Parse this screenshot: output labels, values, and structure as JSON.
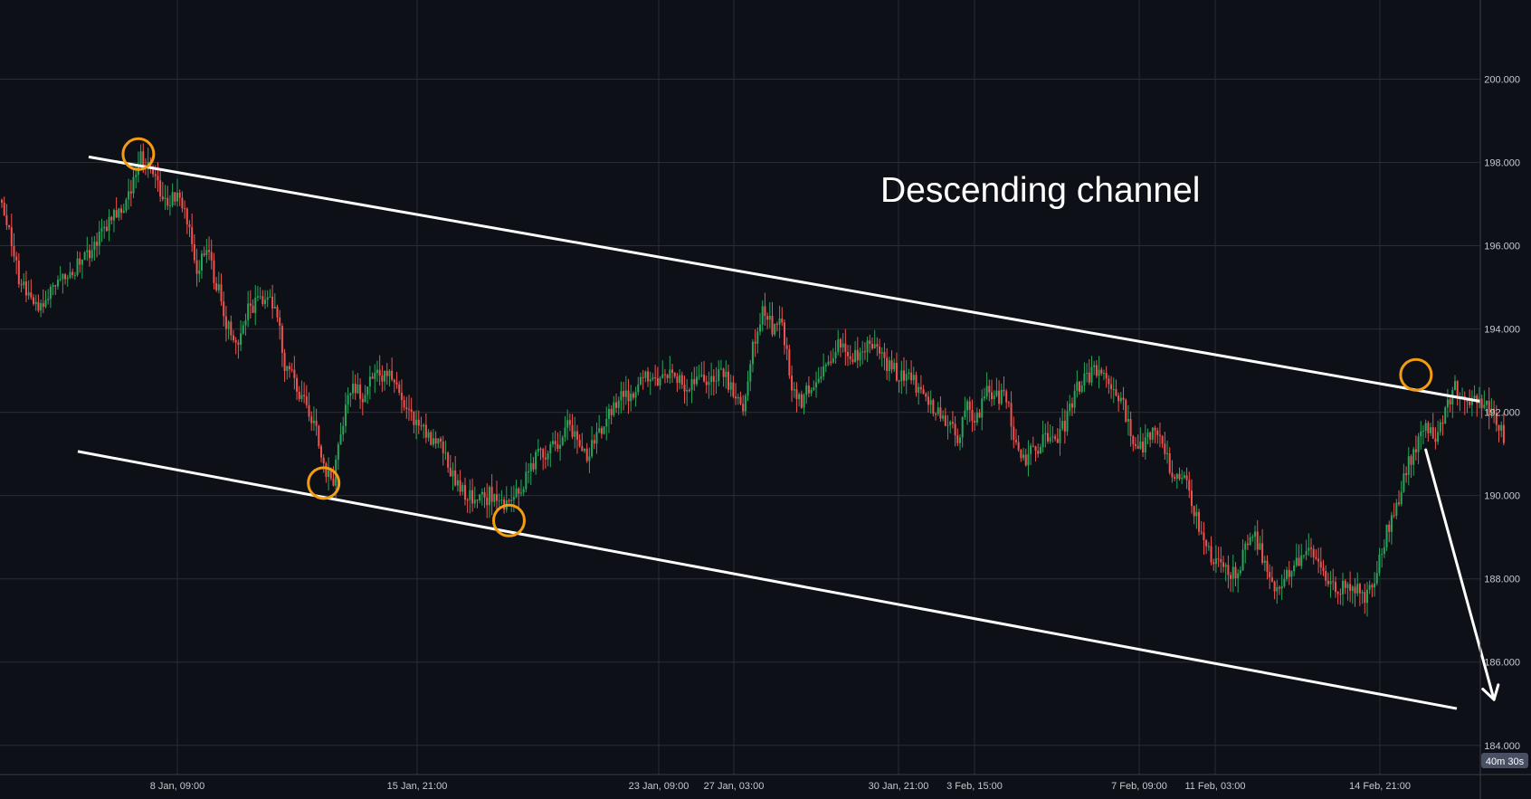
{
  "colors": {
    "background": "#0e1017",
    "grid": "#2a2d36",
    "up": "#26a65b",
    "down": "#ef5350",
    "trendline": "#ffffff",
    "pivot_circle": "#f39c12",
    "timer_bg": "#4a5063"
  },
  "timer": "40m 30s",
  "chart_data": {
    "type": "candlestick",
    "title": "",
    "annotation": "Descending channel",
    "ylim": [
      183.3,
      201.9
    ],
    "y_ticks": [
      184.0,
      186.0,
      188.0,
      190.0,
      192.0,
      194.0,
      196.0,
      198.0,
      200.0
    ],
    "y_tick_labels": [
      "184.000",
      "186.000",
      "188.000",
      "190.000",
      "192.000",
      "194.000",
      "196.000",
      "198.000",
      "200.000"
    ],
    "x_ticks": [
      "8 Jan, 09:00",
      "15 Jan, 21:00",
      "23 Jan, 09:00",
      "27 Jan, 03:00",
      "30 Jan, 21:00",
      "3 Feb, 15:00",
      "7 Feb, 09:00",
      "11 Feb, 03:00",
      "14 Feb, 21:00"
    ],
    "close_path": [
      [
        0,
        197.1
      ],
      [
        2,
        195.0
      ],
      [
        4,
        194.6
      ],
      [
        6,
        195.2
      ],
      [
        8,
        195.6
      ],
      [
        10,
        196.2
      ],
      [
        13,
        197.2
      ],
      [
        14,
        198.1
      ],
      [
        15,
        198.0
      ],
      [
        16,
        197.4
      ],
      [
        17,
        196.9
      ],
      [
        18,
        197.3
      ],
      [
        19,
        196.6
      ],
      [
        20,
        195.5
      ],
      [
        21,
        195.9
      ],
      [
        22,
        195.1
      ],
      [
        23,
        194.2
      ],
      [
        24,
        193.6
      ],
      [
        25,
        194.4
      ],
      [
        26,
        194.6
      ],
      [
        28,
        194.7
      ],
      [
        29,
        193.2
      ],
      [
        30,
        192.7
      ],
      [
        32,
        191.8
      ],
      [
        33,
        190.6
      ],
      [
        34,
        190.4
      ],
      [
        35,
        191.8
      ],
      [
        36,
        192.6
      ],
      [
        37,
        192.4
      ],
      [
        38,
        192.9
      ],
      [
        40,
        192.9
      ],
      [
        41,
        192.2
      ],
      [
        42,
        191.9
      ],
      [
        43,
        191.6
      ],
      [
        44,
        191.4
      ],
      [
        45,
        191.3
      ],
      [
        46,
        190.6
      ],
      [
        47,
        190.1
      ],
      [
        49,
        189.9
      ],
      [
        50,
        190.0
      ],
      [
        51,
        189.7
      ],
      [
        52,
        189.9
      ],
      [
        53,
        190.0
      ],
      [
        54,
        190.5
      ],
      [
        55,
        191.0
      ],
      [
        57,
        191.2
      ],
      [
        58,
        191.8
      ],
      [
        59,
        191.4
      ],
      [
        60,
        191.0
      ],
      [
        61,
        191.4
      ],
      [
        62,
        191.8
      ],
      [
        63,
        192.2
      ],
      [
        65,
        192.6
      ],
      [
        66,
        192.9
      ],
      [
        67,
        192.8
      ],
      [
        69,
        193.0
      ],
      [
        70,
        192.6
      ],
      [
        71,
        192.7
      ],
      [
        73,
        192.8
      ],
      [
        74,
        192.9
      ],
      [
        75,
        192.4
      ],
      [
        76,
        192.2
      ],
      [
        77,
        193.6
      ],
      [
        78,
        194.5
      ],
      [
        79,
        194.0
      ],
      [
        80,
        194.1
      ],
      [
        81,
        192.6
      ],
      [
        82,
        192.3
      ],
      [
        84,
        192.9
      ],
      [
        85,
        193.3
      ],
      [
        86,
        193.7
      ],
      [
        87,
        193.2
      ],
      [
        88,
        193.4
      ],
      [
        89,
        193.6
      ],
      [
        90,
        193.3
      ],
      [
        91,
        193.1
      ],
      [
        92,
        192.9
      ],
      [
        93,
        193.0
      ],
      [
        94,
        192.4
      ],
      [
        95,
        192.2
      ],
      [
        96,
        192.0
      ],
      [
        97,
        191.7
      ],
      [
        98,
        191.4
      ],
      [
        99,
        192.1
      ],
      [
        100,
        191.8
      ],
      [
        101,
        192.6
      ],
      [
        102,
        192.4
      ],
      [
        103,
        192.3
      ],
      [
        104,
        191.2
      ],
      [
        105,
        190.9
      ],
      [
        106,
        191.1
      ],
      [
        107,
        191.4
      ],
      [
        108,
        191.3
      ],
      [
        109,
        191.7
      ],
      [
        110,
        192.4
      ],
      [
        111,
        192.9
      ],
      [
        113,
        193.0
      ],
      [
        114,
        192.6
      ],
      [
        115,
        192.1
      ],
      [
        116,
        191.4
      ],
      [
        117,
        191.2
      ],
      [
        118,
        191.5
      ],
      [
        119,
        191.2
      ],
      [
        120,
        190.6
      ],
      [
        121,
        190.6
      ],
      [
        122,
        189.8
      ],
      [
        123,
        189.1
      ],
      [
        124,
        188.5
      ],
      [
        125,
        188.4
      ],
      [
        126,
        188.1
      ],
      [
        127,
        188.3
      ],
      [
        128,
        189.2
      ],
      [
        129,
        188.7
      ],
      [
        130,
        188.1
      ],
      [
        131,
        187.7
      ],
      [
        132,
        188.2
      ],
      [
        133,
        188.5
      ],
      [
        134,
        188.9
      ],
      [
        135,
        188.3
      ],
      [
        136,
        187.9
      ],
      [
        137,
        187.8
      ],
      [
        139,
        187.7
      ],
      [
        140,
        187.6
      ],
      [
        141,
        188.2
      ],
      [
        142,
        189.1
      ],
      [
        143,
        189.8
      ],
      [
        144,
        190.6
      ],
      [
        145,
        191.2
      ],
      [
        146,
        191.6
      ],
      [
        147,
        191.4
      ],
      [
        148,
        192.1
      ],
      [
        149,
        192.6
      ],
      [
        150,
        192.1
      ],
      [
        151,
        192.4
      ],
      [
        152,
        192.2
      ],
      [
        153,
        191.8
      ],
      [
        154,
        191.4
      ]
    ],
    "channel_upper": [
      [
        0,
        198.5
      ],
      [
        158,
        192.0
      ]
    ],
    "channel_lower": [
      [
        0,
        191.4
      ],
      [
        158,
        184.5
      ]
    ],
    "pivot_points": [
      [
        14,
        198.2
      ],
      [
        33,
        190.3
      ],
      [
        52,
        189.4
      ],
      [
        145,
        192.9
      ]
    ],
    "projection_arrow": [
      [
        146,
        191.1
      ],
      [
        153,
        185.1
      ]
    ]
  }
}
